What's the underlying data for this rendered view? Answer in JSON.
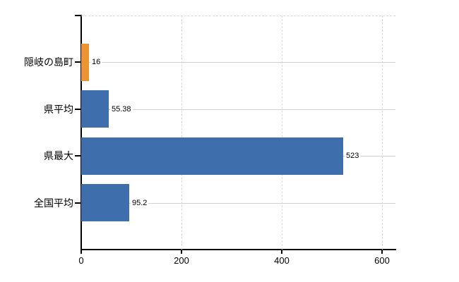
{
  "chart_data": {
    "type": "bar",
    "orientation": "horizontal",
    "title": "",
    "xlabel": "",
    "ylabel": "",
    "categories": [
      "隠岐の島町",
      "県平均",
      "県最大",
      "全国平均"
    ],
    "values": [
      16,
      55.38,
      523,
      95.2
    ],
    "value_labels": [
      "16",
      "55.38",
      "523",
      "95.2"
    ],
    "bar_colors": [
      "#ED9331",
      "#3E6EAB",
      "#3E6EAB",
      "#3E6EAB"
    ],
    "x_ticks": [
      0,
      200,
      400,
      600
    ],
    "x_tick_labels": [
      "0",
      "200",
      "400",
      "600"
    ],
    "xlim": [
      0,
      627
    ],
    "grid": "on",
    "legend": "none"
  },
  "colors": {
    "background": "#ffffff",
    "axis": "#000000",
    "gridline_horizontal": "#ccd5cb",
    "gridline_vertical_dashed": "#d9d9d9",
    "text": "#000000"
  }
}
